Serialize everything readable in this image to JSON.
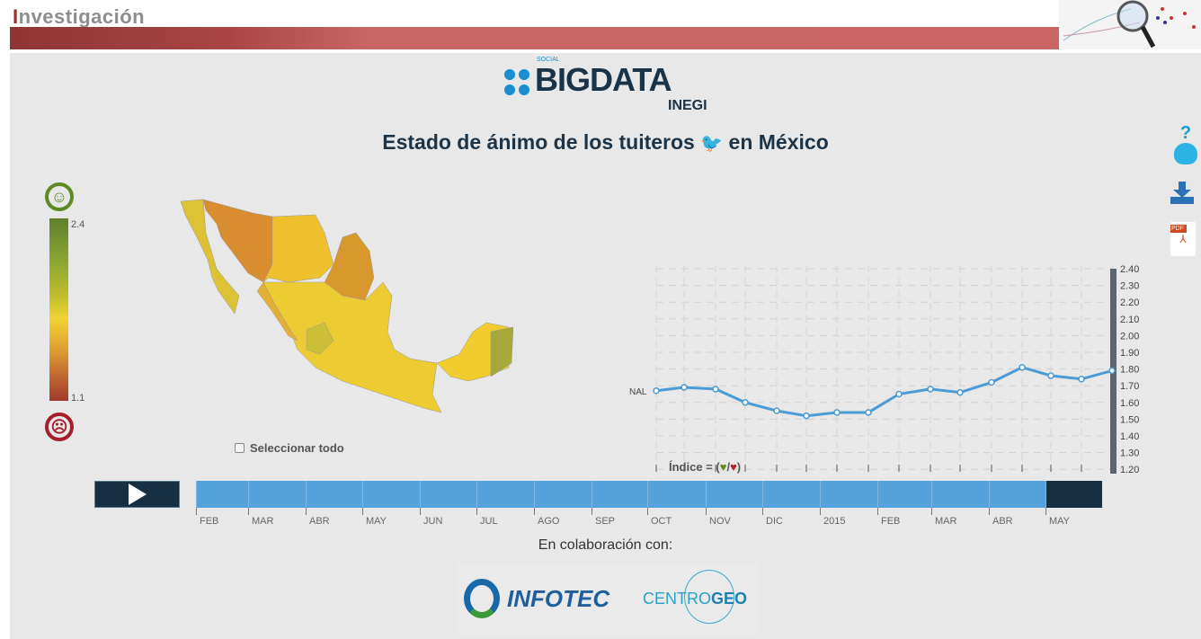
{
  "header": {
    "title": "Investigación"
  },
  "logo": {
    "social": "SOCIAL",
    "brand": "BIGDATA",
    "org": "INEGI"
  },
  "page_title": "Estado de ánimo de los tuiteros",
  "page_title_suffix": "en México",
  "legend": {
    "max": "2.4",
    "min": "1.1",
    "colors": {
      "high": "#5f7f2d",
      "mid": "#f2d333",
      "low": "#a13a2f"
    }
  },
  "select_all": "Seleccionar todo",
  "indice_label": "Índice = (",
  "indice_suffix": ")",
  "chart_data": {
    "type": "line",
    "series": [
      {
        "name": "NAL",
        "values": [
          1.67,
          1.69,
          1.68,
          1.6,
          1.55,
          1.52,
          1.54,
          1.54,
          1.65,
          1.68,
          1.66,
          1.72,
          1.81,
          1.76,
          1.74,
          1.79
        ]
      }
    ],
    "x": [
      "FEB",
      "MAR",
      "ABR",
      "MAY",
      "JUN",
      "JUL",
      "AGO",
      "SEP",
      "OCT",
      "NOV",
      "DIC",
      "2015",
      "FEB",
      "MAR",
      "ABR",
      "MAY"
    ],
    "yticks": [
      "2.40",
      "2.30",
      "2.20",
      "2.10",
      "2.00",
      "1.90",
      "1.80",
      "1.70",
      "1.60",
      "1.50",
      "1.40",
      "1.30",
      "1.20"
    ],
    "ylim": [
      1.13,
      2.44
    ],
    "grid": true,
    "color": "#4a9bd6"
  },
  "timeline": {
    "labels": [
      "FEB",
      "MAR",
      "ABR",
      "MAY",
      "JUN",
      "JUL",
      "AGO",
      "SEP",
      "OCT",
      "NOV",
      "DIC",
      "2015",
      "FEB",
      "MAR",
      "ABR",
      "MAY"
    ],
    "selected": "MAY"
  },
  "collab": "En colaboración con:",
  "partners": [
    "INFOTEC",
    "CENTRO",
    "GEO"
  ],
  "side": {
    "pdf": "PDF",
    "help": "?"
  }
}
